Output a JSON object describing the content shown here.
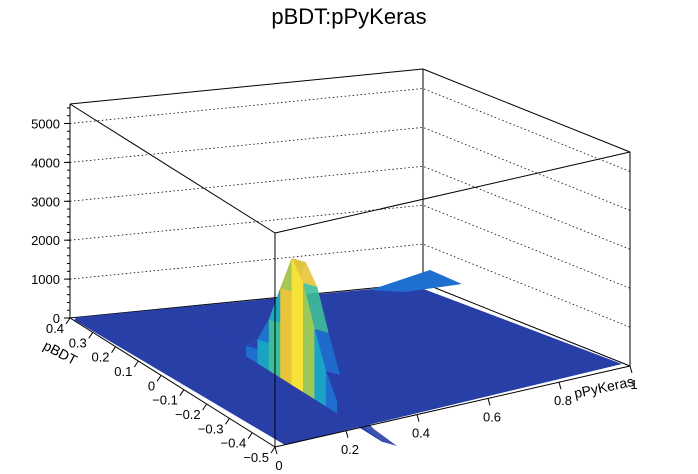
{
  "chart_data": {
    "type": "surface",
    "title": "pBDT:pPyKeras",
    "xlabel": "pPyKeras",
    "ylabel": "pBDT",
    "zlabel": "",
    "xlim": [
      0,
      1
    ],
    "ylim": [
      -0.5,
      0.4
    ],
    "zlim": [
      0,
      5500
    ],
    "x_ticks": [
      "0",
      "0.2",
      "0.4",
      "0.6",
      "0.8",
      "1"
    ],
    "y_ticks": [
      "0.4",
      "0.3",
      "0.2",
      "0.1",
      "0",
      "−0.1",
      "−0.2",
      "−0.3",
      "−0.4",
      "−0.5"
    ],
    "z_ticks": [
      "0",
      "1000",
      "2000",
      "3000",
      "4000",
      "5000"
    ],
    "z_values": [
      0,
      1000,
      2000,
      3000,
      4000,
      5000
    ],
    "grid": true,
    "colormap": [
      "#283fa8",
      "#1e6fd0",
      "#1aa3c4",
      "#3dbd98",
      "#9cc85a",
      "#e8c43a",
      "#f7e23a"
    ],
    "ridge_profile": {
      "x_position": 0.0,
      "y": [
        0.35,
        0.25,
        0.2,
        0.15,
        0.1,
        0.05,
        0.0,
        -0.05,
        -0.1,
        -0.15,
        -0.2,
        -0.25,
        -0.3,
        -0.4,
        -0.5
      ],
      "z": [
        0,
        30,
        60,
        120,
        260,
        600,
        1300,
        2300,
        3250,
        2800,
        1800,
        900,
        300,
        60,
        0
      ]
    }
  }
}
